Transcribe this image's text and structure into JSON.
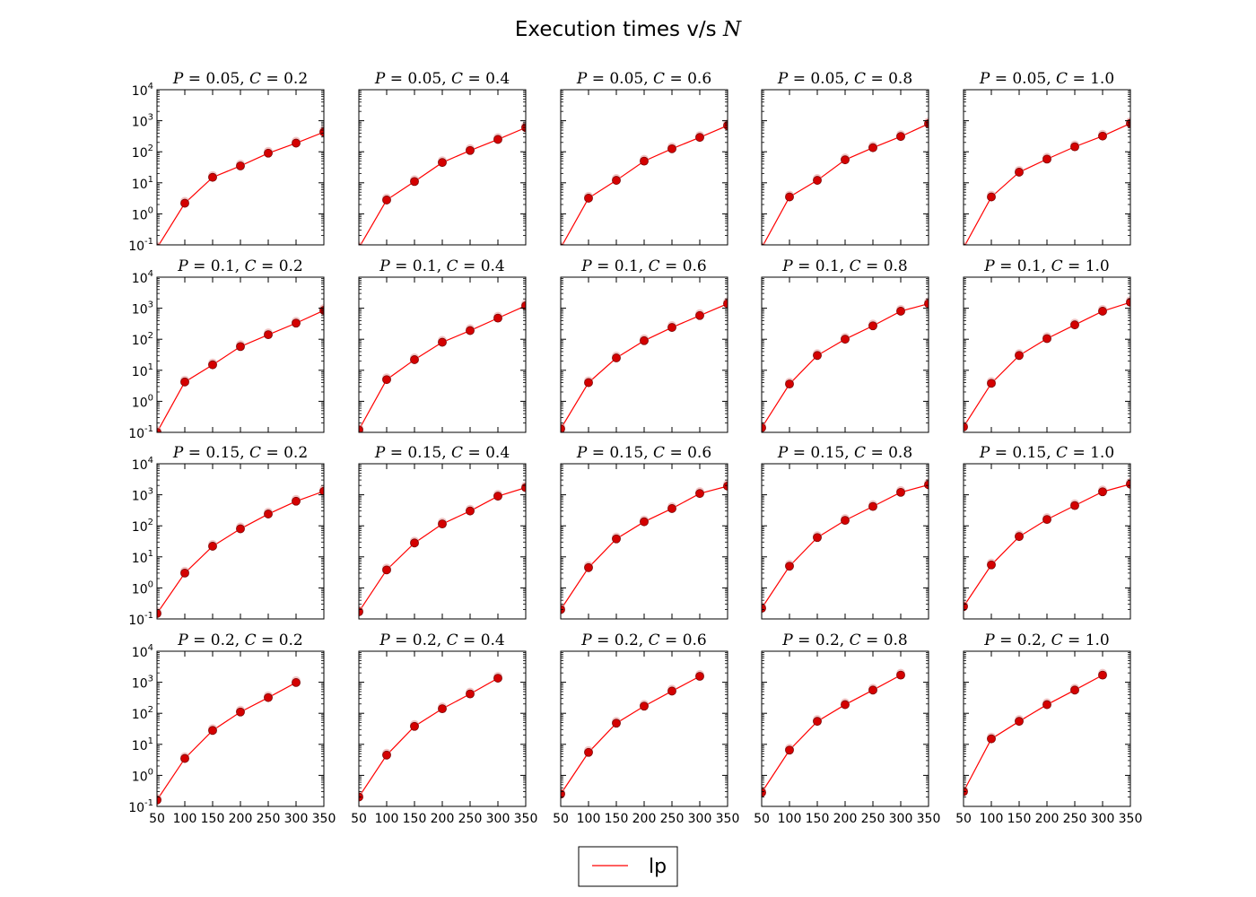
{
  "figure": {
    "title": "Execution times v/s",
    "title_symbol": "N"
  },
  "legend": {
    "label": "lp",
    "color": "#ff0000",
    "placement": "bottom-center"
  },
  "chart_data": {
    "type": "line",
    "layout": {
      "rows": 4,
      "cols": 5
    },
    "xlim": [
      50,
      350
    ],
    "ylim": [
      0.1,
      10000
    ],
    "y_scale": "log",
    "x_ticks": [
      50,
      100,
      150,
      200,
      250,
      300,
      350
    ],
    "y_tick_labels": [
      {
        "base": "10",
        "exp": "4"
      },
      {
        "base": "10",
        "exp": "3"
      },
      {
        "base": "10",
        "exp": "2"
      },
      {
        "base": "10",
        "exp": "1"
      },
      {
        "base": "10",
        "exp": "0"
      },
      {
        "base": "10",
        "exp": "-1"
      }
    ],
    "y_tick_values": [
      10000,
      1000,
      100,
      10,
      1,
      0.1
    ],
    "series_color": "#ff0000",
    "marker_color": "#d40000",
    "panels": [
      {
        "title": "P = 0.05, C = 0.2",
        "x": [
          50,
          100,
          150,
          200,
          250,
          300,
          350
        ],
        "y": [
          0.08,
          2.2,
          15,
          35,
          90,
          190,
          430
        ]
      },
      {
        "title": "P = 0.05, C = 0.4",
        "x": [
          50,
          100,
          150,
          200,
          250,
          300,
          350
        ],
        "y": [
          0.08,
          2.8,
          11,
          45,
          110,
          250,
          600
        ]
      },
      {
        "title": "P = 0.05, C = 0.6",
        "x": [
          50,
          100,
          150,
          200,
          250,
          300,
          350
        ],
        "y": [
          0.08,
          3.2,
          12,
          50,
          125,
          290,
          700
        ]
      },
      {
        "title": "P = 0.05, C = 0.8",
        "x": [
          50,
          100,
          150,
          200,
          250,
          300,
          350
        ],
        "y": [
          0.08,
          3.5,
          12,
          55,
          135,
          310,
          800
        ]
      },
      {
        "title": "P = 0.05, C = 1.0",
        "x": [
          50,
          100,
          150,
          200,
          250,
          300,
          350
        ],
        "y": [
          0.08,
          3.5,
          22,
          58,
          145,
          320,
          820
        ]
      },
      {
        "title": "P = 0.1, C = 0.2",
        "x": [
          50,
          100,
          150,
          200,
          250,
          300,
          350
        ],
        "y": [
          0.1,
          4.2,
          15,
          58,
          140,
          330,
          850
        ]
      },
      {
        "title": "P = 0.1, C = 0.4",
        "x": [
          50,
          100,
          150,
          200,
          250,
          300,
          350
        ],
        "y": [
          0.12,
          5,
          22,
          80,
          190,
          480,
          1200
        ]
      },
      {
        "title": "P = 0.1, C = 0.6",
        "x": [
          50,
          100,
          150,
          200,
          250,
          300,
          350
        ],
        "y": [
          0.13,
          4,
          25,
          90,
          240,
          580,
          1400
        ]
      },
      {
        "title": "P = 0.1, C = 0.8",
        "x": [
          50,
          100,
          150,
          200,
          250,
          300,
          350
        ],
        "y": [
          0.14,
          3.6,
          30,
          100,
          270,
          800,
          1400
        ]
      },
      {
        "title": "P = 0.1, C = 1.0",
        "x": [
          50,
          100,
          150,
          200,
          250,
          300,
          350
        ],
        "y": [
          0.15,
          3.8,
          30,
          105,
          290,
          800,
          1550
        ]
      },
      {
        "title": "P = 0.15, C = 0.2",
        "x": [
          50,
          100,
          150,
          200,
          250,
          300,
          350
        ],
        "y": [
          0.15,
          3,
          22,
          80,
          240,
          620,
          1300
        ]
      },
      {
        "title": "P = 0.15, C = 0.4",
        "x": [
          50,
          100,
          150,
          200,
          250,
          300,
          350
        ],
        "y": [
          0.17,
          3.8,
          28,
          115,
          300,
          900,
          1700
        ]
      },
      {
        "title": "P = 0.15, C = 0.6",
        "x": [
          50,
          100,
          150,
          200,
          250,
          300,
          350
        ],
        "y": [
          0.2,
          4.5,
          38,
          135,
          360,
          1100,
          1900
        ]
      },
      {
        "title": "P = 0.15, C = 0.8",
        "x": [
          50,
          100,
          150,
          200,
          250,
          300,
          350
        ],
        "y": [
          0.22,
          5,
          42,
          150,
          420,
          1200,
          2100
        ]
      },
      {
        "title": "P = 0.15, C = 1.0",
        "x": [
          50,
          100,
          150,
          200,
          250,
          300,
          350
        ],
        "y": [
          0.25,
          5.5,
          45,
          160,
          450,
          1250,
          2200
        ]
      },
      {
        "title": "P = 0.2, C = 0.2",
        "x": [
          50,
          100,
          150,
          200,
          250,
          300
        ],
        "y": [
          0.16,
          3.5,
          28,
          110,
          320,
          980
        ]
      },
      {
        "title": "P = 0.2, C = 0.4",
        "x": [
          50,
          100,
          150,
          200,
          250,
          300
        ],
        "y": [
          0.2,
          4.5,
          38,
          140,
          420,
          1350
        ]
      },
      {
        "title": "P = 0.2, C = 0.6",
        "x": [
          50,
          100,
          150,
          200,
          250,
          300
        ],
        "y": [
          0.25,
          5.5,
          48,
          170,
          520,
          1550
        ]
      },
      {
        "title": "P = 0.2, C = 0.8",
        "x": [
          50,
          100,
          150,
          200,
          250,
          300
        ],
        "y": [
          0.28,
          6.5,
          55,
          190,
          560,
          1700
        ]
      },
      {
        "title": "P = 0.2, C = 1.0",
        "x": [
          50,
          100,
          150,
          200,
          250,
          300
        ],
        "y": [
          0.3,
          15,
          55,
          190,
          560,
          1700
        ]
      }
    ]
  }
}
